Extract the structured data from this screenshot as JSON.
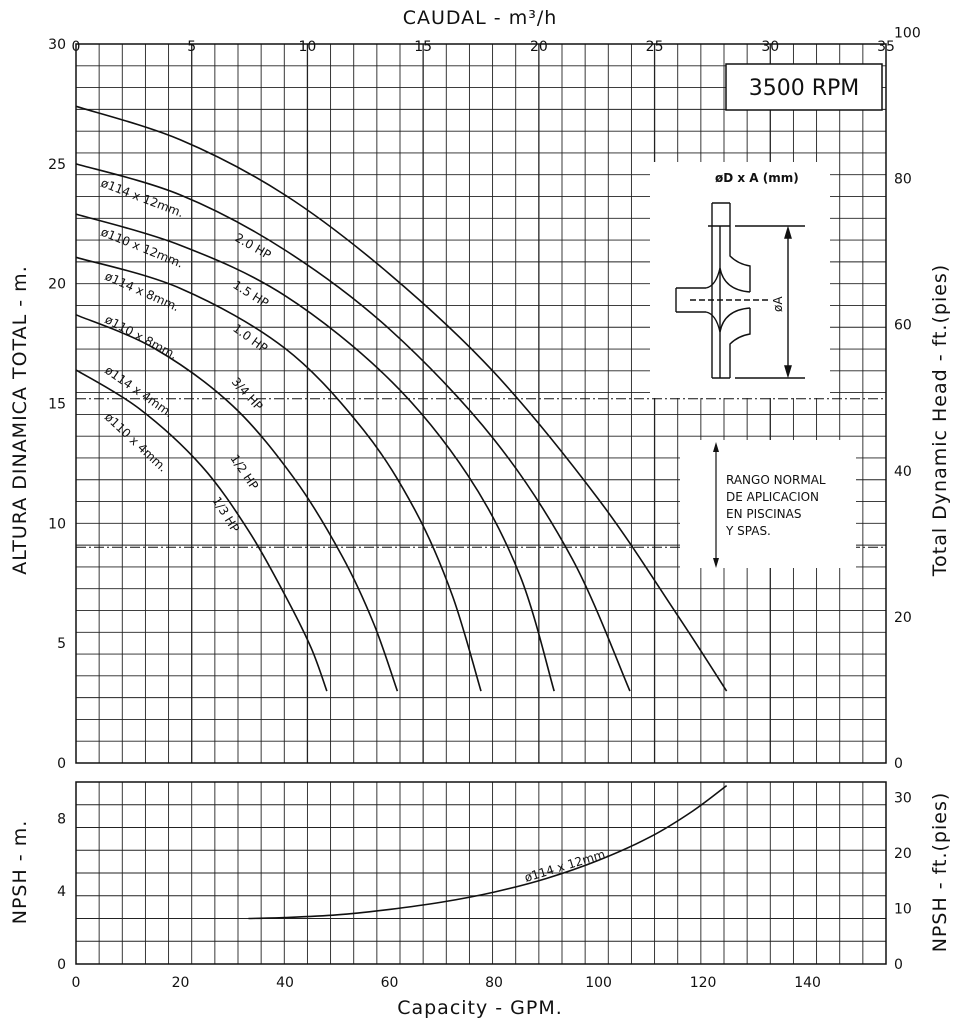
{
  "chart_data": [
    {
      "type": "line",
      "name": "head",
      "xlabel": "Capacity - GPM.",
      "ylabel": "ALTURA DINAMICA TOTAL - m.",
      "x2label": "CAUDAL - m³/h",
      "y2label": "Total Dynamic Head - ft.(pies)",
      "xlim": [
        0,
        155
      ],
      "ylim": [
        0,
        30
      ],
      "x_ticks": [
        0,
        20,
        40,
        60,
        80,
        100,
        120,
        140
      ],
      "y_ticks": [
        0,
        5,
        10,
        15,
        20,
        25,
        30
      ],
      "x2_ticks": [
        0,
        5,
        10,
        15,
        20,
        25,
        30,
        35
      ],
      "y2_ticks": [
        0,
        20,
        40,
        60,
        80,
        100
      ],
      "grid": true,
      "rpm_label": "3500 RPM",
      "impeller_title": "øD x A (mm)",
      "impeller_dim": "øA",
      "range_note": [
        "RANGO NORMAL",
        "DE APLICACION",
        "EN PISCINAS",
        "Y SPAS."
      ],
      "range_band": [
        9.0,
        15.2
      ],
      "series": [
        {
          "name": "2.0 HP",
          "impeller": "ø114 x 12mm.",
          "x": [
            0,
            20,
            40,
            60,
            80,
            100,
            115,
            124.5
          ],
          "y": [
            27.4,
            26.0,
            23.7,
            20.4,
            16.3,
            11.0,
            6.2,
            3.0
          ]
        },
        {
          "name": "1.5 HP",
          "impeller": "ø110 x 12mm.",
          "x": [
            0,
            20,
            40,
            60,
            80,
            95,
            106
          ],
          "y": [
            25.0,
            23.7,
            21.4,
            18.1,
            13.5,
            8.5,
            3.0
          ]
        },
        {
          "name": "1.0 HP",
          "impeller": "ø114 x 8mm.",
          "x": [
            0,
            20,
            40,
            60,
            75,
            85,
            91.5
          ],
          "y": [
            22.9,
            21.6,
            19.5,
            16.0,
            12.0,
            7.8,
            3.0
          ]
        },
        {
          "name": "3/4 HP",
          "impeller": "ø110 x 8mm.",
          "x": [
            0,
            20,
            40,
            55,
            65,
            72,
            77.5
          ],
          "y": [
            21.1,
            19.8,
            17.3,
            13.9,
            10.5,
            7.0,
            3.0
          ]
        },
        {
          "name": "1/2 HP",
          "impeller": "ø114 x 4mm.",
          "x": [
            0,
            15,
            30,
            42,
            51,
            57,
            61.5
          ],
          "y": [
            18.7,
            17.3,
            14.9,
            11.8,
            8.6,
            5.8,
            3.0
          ]
        },
        {
          "name": "1/3 HP",
          "impeller": "ø110 x 4mm.",
          "x": [
            0,
            12,
            24,
            33,
            40,
            45,
            48
          ],
          "y": [
            16.4,
            14.8,
            12.4,
            9.7,
            7.0,
            4.8,
            3.0
          ]
        }
      ]
    },
    {
      "type": "line",
      "name": "npsh",
      "xlabel": "Capacity - GPM.",
      "ylabel": "NPSH - m.",
      "y2label": "NPSH - ft.(pies)",
      "xlim": [
        0,
        155
      ],
      "ylim": [
        0,
        10
      ],
      "y_ticks": [
        0,
        4,
        8
      ],
      "y2_ticks": [
        0,
        10,
        20,
        30
      ],
      "grid": true,
      "series": [
        {
          "name": "ø114 x 12mm.",
          "x": [
            33,
            40,
            50,
            60,
            70,
            80,
            90,
            100,
            110,
            118,
            124.5
          ],
          "y": [
            2.5,
            2.55,
            2.7,
            3.0,
            3.4,
            3.95,
            4.7,
            5.7,
            7.0,
            8.4,
            9.8
          ]
        }
      ]
    }
  ]
}
